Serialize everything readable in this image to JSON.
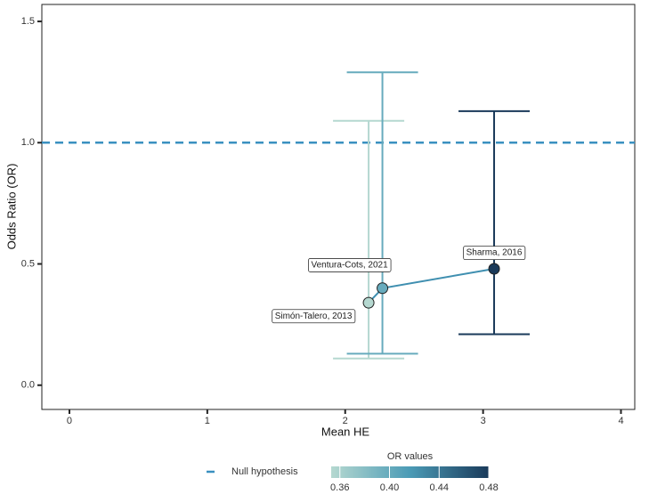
{
  "chart_data": {
    "type": "errorbar",
    "x_label": "Mean HE",
    "y_label": "Odds Ratio (OR)",
    "labels": [
      "Simón-Talero, 2013",
      "Ventura-Cots, 2021",
      "Sharma, 2016"
    ],
    "x": [
      2.17,
      2.27,
      3.08
    ],
    "values": [
      0.34,
      0.4,
      0.48
    ],
    "lower": [
      0.11,
      0.13,
      0.21
    ],
    "upper": [
      1.09,
      1.29,
      1.13
    ],
    "line_color": "#3f8fb0",
    "xlim": [
      -0.2,
      4.1
    ],
    "xticks": [
      0,
      1,
      2,
      3,
      4
    ],
    "ylim": [
      -0.1,
      1.57
    ],
    "yticks": [
      {
        "value": 0,
        "label": "0.0"
      },
      0.5,
      {
        "value": 1,
        "label": "1.0"
      },
      1.5
    ],
    "hline": {
      "value": 1,
      "name": "Null hypothesis",
      "color": "#3a90c0"
    },
    "colorbar": {
      "title": "OR values",
      "lim": [
        0.353,
        0.48
      ],
      "ticks": [
        0.36,
        {
          "value": 0.4,
          "label": "0.40"
        },
        0.44,
        0.48
      ],
      "colors": [
        "#b5d8d0",
        "#4b9bb6",
        "#1a3a5a"
      ]
    }
  }
}
